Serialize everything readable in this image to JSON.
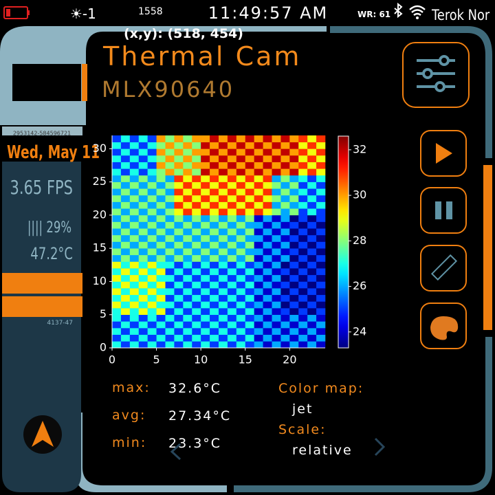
{
  "status_bar": {
    "brightness": "☀-1",
    "counter": "1558",
    "time": "11:49:57 AM",
    "wifi_rate": "WR: 61",
    "location": "Terok Nor"
  },
  "cursor": "(x,y): (518, 454)",
  "header": {
    "title": "Thermal Cam",
    "subtitle": "MLX90640"
  },
  "sidebar": {
    "code_top": "2953142-584596721",
    "date": "Wed, May 11",
    "fps": "3.65 FPS",
    "battery": "|||| 29%",
    "temperature": "47.2°C",
    "code_bottom": "4137-47"
  },
  "chart_data": {
    "type": "heatmap",
    "colormap": "jet",
    "values": [
      [
        27,
        25,
        27,
        25,
        27,
        25,
        27,
        25,
        27,
        25,
        27,
        25,
        27,
        25,
        27,
        25,
        26,
        24,
        26,
        24,
        26,
        24,
        26,
        24
      ],
      [
        25,
        27,
        25,
        27,
        25,
        27,
        25,
        27,
        25,
        27,
        25,
        27,
        25,
        27,
        25,
        27,
        24,
        26,
        24,
        26,
        24,
        26,
        24,
        26
      ],
      [
        27,
        25,
        27,
        25,
        27,
        25,
        27,
        25,
        27,
        25,
        27,
        25,
        27,
        25,
        27,
        25,
        26,
        24,
        26,
        24,
        26,
        24,
        26,
        24
      ],
      [
        25,
        27,
        25,
        27,
        25,
        27,
        25,
        27,
        25,
        27,
        25,
        27,
        25,
        27,
        25,
        27,
        24,
        26,
        24,
        26,
        24,
        26,
        24,
        26
      ],
      [
        27,
        25,
        27,
        25,
        27,
        25,
        27,
        25,
        27,
        25,
        27,
        25,
        27,
        25,
        27,
        25,
        26,
        24,
        26,
        24,
        26,
        24,
        26,
        24
      ],
      [
        27,
        29,
        27,
        29,
        27,
        29,
        25,
        27,
        25,
        27,
        25,
        27,
        25,
        27,
        25,
        27,
        24,
        26,
        24,
        25,
        23,
        25,
        23,
        25
      ],
      [
        29,
        27,
        29,
        27,
        29,
        27,
        27,
        25,
        27,
        25,
        27,
        25,
        27,
        25,
        27,
        25,
        26,
        24,
        26,
        23,
        25,
        23,
        25,
        23
      ],
      [
        27,
        29,
        27,
        29,
        27,
        29,
        25,
        27,
        25,
        27,
        25,
        27,
        25,
        27,
        25,
        27,
        24,
        26,
        24,
        25,
        23,
        25,
        23,
        25
      ],
      [
        29,
        27,
        29,
        27,
        29,
        27,
        27,
        25,
        27,
        25,
        27,
        25,
        27,
        25,
        27,
        25,
        26,
        24,
        26,
        23,
        25,
        23,
        25,
        23
      ],
      [
        27,
        29,
        27,
        29,
        27,
        29,
        25,
        27,
        25,
        27,
        25,
        27,
        25,
        27,
        25,
        27,
        24,
        26,
        24,
        25,
        23,
        25,
        23,
        25
      ],
      [
        29,
        27,
        29,
        27,
        29,
        27,
        27,
        25,
        27,
        25,
        27,
        25,
        27,
        25,
        27,
        25,
        26,
        24,
        26,
        23,
        25,
        23,
        25,
        23
      ],
      [
        27,
        29,
        27,
        29,
        27,
        29,
        25,
        27,
        25,
        27,
        25,
        27,
        25,
        27,
        25,
        27,
        24,
        26,
        24,
        25,
        23,
        25,
        23,
        25
      ],
      [
        29,
        27,
        29,
        27,
        29,
        27,
        27,
        25,
        27,
        25,
        27,
        25,
        27,
        25,
        27,
        25,
        26,
        24,
        26,
        23,
        25,
        23,
        25,
        23
      ],
      [
        26,
        28,
        26,
        28,
        26,
        28,
        26,
        28,
        26,
        28,
        26,
        28,
        26,
        28,
        26,
        28,
        24,
        26,
        24,
        26,
        23,
        25,
        23,
        25
      ],
      [
        28,
        26,
        28,
        26,
        28,
        26,
        28,
        26,
        28,
        26,
        28,
        26,
        28,
        26,
        28,
        26,
        26,
        24,
        26,
        24,
        25,
        23,
        25,
        23
      ],
      [
        26,
        28,
        26,
        28,
        26,
        28,
        26,
        28,
        26,
        28,
        26,
        28,
        26,
        28,
        26,
        28,
        24,
        26,
        24,
        26,
        23,
        25,
        23,
        25
      ],
      [
        28,
        26,
        28,
        26,
        28,
        26,
        28,
        26,
        28,
        26,
        28,
        26,
        28,
        26,
        28,
        26,
        26,
        24,
        26,
        24,
        25,
        23,
        25,
        23
      ],
      [
        26,
        28,
        26,
        28,
        26,
        28,
        26,
        28,
        26,
        28,
        26,
        28,
        26,
        28,
        26,
        28,
        24,
        26,
        24,
        26,
        23,
        25,
        23,
        25
      ],
      [
        28,
        26,
        28,
        26,
        28,
        26,
        28,
        26,
        28,
        26,
        28,
        26,
        28,
        26,
        28,
        26,
        26,
        24,
        26,
        24,
        25,
        23,
        25,
        23
      ],
      [
        26,
        28,
        26,
        28,
        26,
        28,
        26,
        28,
        26,
        28,
        26,
        28,
        26,
        28,
        26,
        28,
        24,
        26,
        24,
        26,
        23,
        25,
        23,
        25
      ],
      [
        28,
        26,
        28,
        26,
        28,
        26,
        28,
        29,
        31,
        29,
        31,
        29,
        31,
        29,
        31,
        29,
        31,
        29,
        28,
        26,
        28,
        25,
        27,
        25
      ],
      [
        26,
        28,
        26,
        28,
        26,
        28,
        26,
        31,
        29,
        31,
        29,
        31,
        29,
        31,
        29,
        31,
        29,
        31,
        26,
        28,
        26,
        27,
        25,
        27
      ],
      [
        28,
        26,
        28,
        26,
        28,
        26,
        28,
        29,
        31,
        29,
        31,
        29,
        31,
        29,
        31,
        29,
        31,
        29,
        28,
        26,
        28,
        25,
        27,
        25
      ],
      [
        26,
        28,
        26,
        28,
        26,
        28,
        26,
        31,
        29,
        31,
        29,
        31,
        29,
        31,
        29,
        31,
        29,
        31,
        26,
        28,
        26,
        27,
        25,
        27
      ],
      [
        28,
        26,
        28,
        26,
        28,
        26,
        28,
        29,
        31,
        29,
        31,
        29,
        31,
        29,
        31,
        29,
        31,
        29,
        28,
        26,
        28,
        25,
        27,
        25
      ],
      [
        26,
        28,
        26,
        28,
        26,
        28,
        26,
        31,
        29,
        31,
        29,
        31,
        29,
        31,
        29,
        31,
        29,
        31,
        26,
        28,
        26,
        27,
        25,
        27
      ],
      [
        27,
        25,
        27,
        25,
        27,
        28,
        30,
        28,
        30,
        28,
        32,
        30,
        32,
        30,
        32,
        30,
        32,
        30,
        32,
        30,
        32,
        29,
        31,
        29
      ],
      [
        25,
        27,
        25,
        27,
        25,
        30,
        28,
        30,
        28,
        30,
        30,
        32,
        30,
        32,
        30,
        32,
        30,
        32,
        30,
        32,
        30,
        31,
        29,
        31
      ],
      [
        27,
        25,
        27,
        25,
        27,
        28,
        30,
        28,
        30,
        28,
        32,
        30,
        32,
        30,
        32,
        30,
        32,
        30,
        32,
        30,
        32,
        29,
        31,
        29
      ],
      [
        25,
        27,
        25,
        27,
        25,
        30,
        28,
        30,
        28,
        30,
        30,
        32,
        30,
        32,
        30,
        32,
        30,
        32,
        30,
        32,
        30,
        31,
        29,
        31
      ],
      [
        27,
        25,
        27,
        25,
        27,
        28,
        30,
        28,
        30,
        28,
        32,
        30,
        32,
        30,
        32,
        30,
        32,
        30,
        32,
        30,
        32,
        29,
        31,
        29
      ],
      [
        25,
        27,
        25,
        27,
        25,
        30,
        28,
        30,
        28,
        30,
        30,
        32,
        30,
        32,
        30,
        32,
        30,
        32,
        30,
        32,
        30,
        31,
        29,
        31
      ]
    ],
    "xlim": [
      0,
      24
    ],
    "xticks": [
      0,
      5,
      10,
      15,
      20
    ],
    "ylim": [
      0,
      32
    ],
    "yticks": [
      0,
      5,
      10,
      15,
      20,
      25,
      30
    ],
    "clim": [
      23.3,
      32.6
    ],
    "cticks": [
      24,
      26,
      28,
      30,
      32
    ]
  },
  "stats": {
    "max_label": "max:",
    "max": "32.6°C",
    "avg_label": "avg:",
    "avg": "27.34°C",
    "min_label": "min:",
    "min": "23.3°C"
  },
  "settings": {
    "colormap_label": "Color map:",
    "colormap": "jet",
    "scale_label": "Scale:",
    "scale": "relative"
  }
}
